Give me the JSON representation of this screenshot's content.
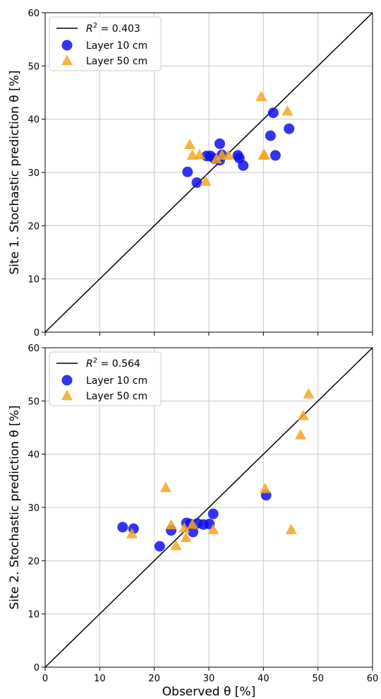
{
  "chart_data": [
    {
      "type": "scatter",
      "xlim": [
        0,
        60
      ],
      "ylim": [
        0,
        60
      ],
      "xticks": [
        0,
        10,
        20,
        30,
        40,
        50,
        60
      ],
      "yticks": [
        0,
        10,
        20,
        30,
        40,
        50,
        60
      ],
      "grid": true,
      "legend_position": "top-left",
      "xlabel": "",
      "ylabel": "Site 1. Stochastic prediction θ [%]",
      "fit_line": {
        "r2_prefix": "R",
        "r2_sup": "2",
        "r2_value": " = 0.403",
        "color": "#000000"
      },
      "series": [
        {
          "name": "Layer 10 cm",
          "marker": "circle",
          "color": "#1010ee",
          "points": [
            [
              26.1,
              30.1
            ],
            [
              27.8,
              28.1
            ],
            [
              29.6,
              33.1
            ],
            [
              30.3,
              33.1
            ],
            [
              31.0,
              32.6
            ],
            [
              32.0,
              35.4
            ],
            [
              32.4,
              33.3
            ],
            [
              32.0,
              32.3
            ],
            [
              35.3,
              33.2
            ],
            [
              35.6,
              32.7
            ],
            [
              36.3,
              31.3
            ],
            [
              41.3,
              36.9
            ],
            [
              41.8,
              41.2
            ],
            [
              42.2,
              33.2
            ],
            [
              44.7,
              38.2
            ]
          ]
        },
        {
          "name": "Layer 50 cm",
          "marker": "triangle",
          "color": "#f5a623",
          "points": [
            [
              26.5,
              35.2
            ],
            [
              27.0,
              33.2
            ],
            [
              28.3,
              33.3
            ],
            [
              29.4,
              28.3
            ],
            [
              31.4,
              32.5
            ],
            [
              32.4,
              33.2
            ],
            [
              33.6,
              33.2
            ],
            [
              39.6,
              44.2
            ],
            [
              40.0,
              33.2
            ],
            [
              40.2,
              33.3
            ],
            [
              44.4,
              41.5
            ]
          ]
        }
      ]
    },
    {
      "type": "scatter",
      "xlim": [
        0,
        60
      ],
      "ylim": [
        0,
        60
      ],
      "xticks": [
        0,
        10,
        20,
        30,
        40,
        50,
        60
      ],
      "yticks": [
        0,
        10,
        20,
        30,
        40,
        50,
        60
      ],
      "grid": true,
      "legend_position": "top-left",
      "xlabel": "Observed θ [%]",
      "ylabel": "Site 2. Stochastic prediction θ [%]",
      "fit_line": {
        "r2_prefix": "R",
        "r2_sup": "2",
        "r2_value": " = 0.564",
        "color": "#000000"
      },
      "series": [
        {
          "name": "Layer 10 cm",
          "marker": "circle",
          "color": "#1010ee",
          "points": [
            [
              14.2,
              26.3
            ],
            [
              16.2,
              26.0
            ],
            [
              21.0,
              22.7
            ],
            [
              23.1,
              25.7
            ],
            [
              25.9,
              27.1
            ],
            [
              26.6,
              26.9
            ],
            [
              27.1,
              25.4
            ],
            [
              27.9,
              27.0
            ],
            [
              29.0,
              26.8
            ],
            [
              30.1,
              26.9
            ],
            [
              30.8,
              28.8
            ],
            [
              40.5,
              32.3
            ]
          ]
        },
        {
          "name": "Layer 50 cm",
          "marker": "triangle",
          "color": "#f5a623",
          "points": [
            [
              15.9,
              25.0
            ],
            [
              22.1,
              33.7
            ],
            [
              23.1,
              26.7
            ],
            [
              24.0,
              22.8
            ],
            [
              25.5,
              26.1
            ],
            [
              25.8,
              24.3
            ],
            [
              27.0,
              26.8
            ],
            [
              30.8,
              25.8
            ],
            [
              40.3,
              33.5
            ],
            [
              45.1,
              25.8
            ],
            [
              46.8,
              43.6
            ],
            [
              47.3,
              47.2
            ],
            [
              48.3,
              51.3
            ]
          ]
        }
      ]
    }
  ]
}
